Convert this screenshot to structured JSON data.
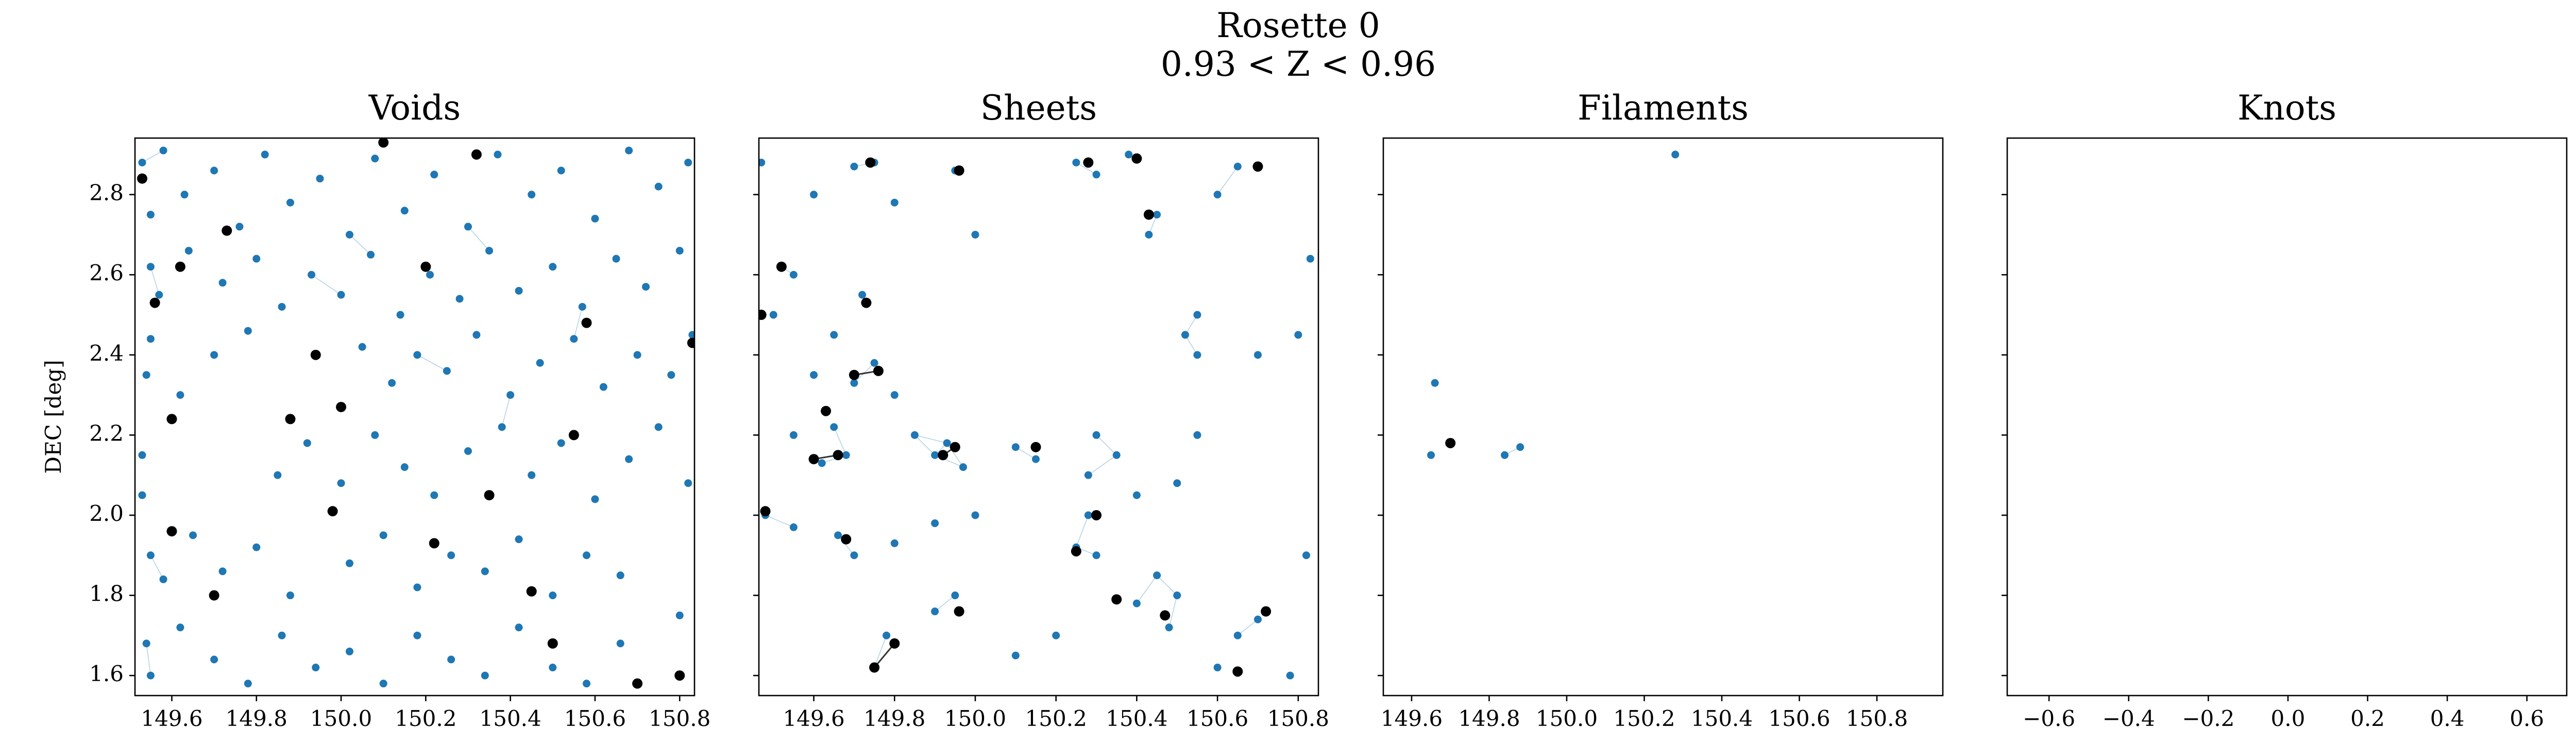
{
  "title": "Rosette 0",
  "subtitle": "0.93 < Z < 0.96",
  "chart_data": [
    {
      "type": "scatter",
      "title": "Voids",
      "ylabel": "DEC [deg]",
      "xlim": [
        149.513,
        150.835
      ],
      "ylim": [
        1.55,
        2.941
      ],
      "xticks": [
        149.6,
        149.8,
        {
          "value": 150,
          "label": "150.0"
        },
        150.2,
        150.4,
        150.6,
        150.8
      ],
      "yticks": [
        1.6,
        1.8,
        {
          "value": 2,
          "label": "2.0"
        },
        2.2,
        2.4,
        2.6,
        2.8
      ],
      "series": [
        {
          "color": "#1f77b4",
          "x": [
            149.53,
            149.55,
            149.58,
            149.63,
            149.7,
            149.76,
            149.82,
            149.88,
            149.95,
            150.02,
            150.08,
            150.15,
            150.22,
            150.3,
            150.37,
            150.45,
            150.52,
            150.6,
            150.68,
            150.75,
            150.82,
            149.55,
            149.57,
            149.64,
            149.72,
            149.8,
            149.86,
            149.93,
            150.0,
            150.07,
            150.14,
            150.21,
            150.28,
            150.35,
            150.42,
            150.5,
            150.57,
            150.65,
            150.72,
            150.8,
            149.54,
            149.55,
            149.62,
            149.7,
            149.78,
            150.05,
            150.12,
            150.18,
            150.25,
            150.32,
            150.4,
            150.47,
            150.55,
            150.62,
            150.7,
            150.78,
            150.83,
            149.53,
            149.53,
            149.85,
            149.92,
            150.0,
            150.08,
            150.15,
            150.22,
            150.3,
            150.38,
            150.45,
            150.52,
            150.6,
            150.68,
            150.75,
            150.82,
            149.55,
            149.58,
            149.65,
            149.72,
            149.8,
            149.88,
            150.02,
            150.1,
            150.18,
            150.26,
            150.34,
            150.42,
            150.5,
            150.58,
            150.66,
            150.8,
            149.54,
            149.55,
            149.62,
            149.7,
            149.78,
            149.86,
            149.94,
            150.02,
            150.1,
            150.18,
            150.26,
            150.34,
            150.42,
            150.5,
            150.58,
            150.66
          ],
          "y": [
            2.88,
            2.75,
            2.91,
            2.8,
            2.86,
            2.72,
            2.9,
            2.78,
            2.84,
            2.7,
            2.89,
            2.76,
            2.85,
            2.72,
            2.9,
            2.8,
            2.86,
            2.74,
            2.91,
            2.82,
            2.88,
            2.62,
            2.55,
            2.66,
            2.58,
            2.64,
            2.52,
            2.6,
            2.55,
            2.65,
            2.5,
            2.6,
            2.54,
            2.66,
            2.56,
            2.62,
            2.52,
            2.64,
            2.57,
            2.66,
            2.35,
            2.44,
            2.3,
            2.4,
            2.46,
            2.42,
            2.33,
            2.4,
            2.36,
            2.45,
            2.3,
            2.38,
            2.44,
            2.32,
            2.4,
            2.35,
            2.45,
            2.15,
            2.05,
            2.1,
            2.18,
            2.08,
            2.2,
            2.12,
            2.05,
            2.16,
            2.22,
            2.1,
            2.18,
            2.04,
            2.14,
            2.22,
            2.08,
            1.9,
            1.84,
            1.95,
            1.86,
            1.92,
            1.8,
            1.88,
            1.95,
            1.82,
            1.9,
            1.86,
            1.94,
            1.8,
            1.9,
            1.85,
            1.75,
            1.68,
            1.6,
            1.72,
            1.64,
            1.58,
            1.7,
            1.62,
            1.66,
            1.58,
            1.7,
            1.64,
            1.6,
            1.72,
            1.62,
            1.58,
            1.68
          ]
        },
        {
          "color": "#000000",
          "x": [
            149.53,
            149.62,
            149.73,
            149.94,
            150.2,
            150.32,
            150.58,
            150.83,
            149.6,
            149.88,
            150.35,
            150.55,
            149.6,
            149.7,
            149.98,
            150.22,
            150.45,
            150.7,
            150.8,
            149.56,
            150.0,
            150.1,
            150.5
          ],
          "y": [
            2.84,
            2.62,
            2.71,
            2.4,
            2.62,
            2.9,
            2.48,
            2.43,
            2.24,
            2.24,
            2.05,
            2.2,
            1.96,
            1.8,
            2.01,
            1.93,
            1.81,
            1.58,
            1.6,
            2.53,
            2.27,
            2.93,
            1.68
          ]
        }
      ]
    },
    {
      "type": "scatter",
      "title": "Sheets",
      "xlim": [
        149.464,
        150.85
      ],
      "ylim": [
        1.55,
        2.941
      ],
      "xticks": [
        149.6,
        149.8,
        {
          "value": 150,
          "label": "150.0"
        },
        150.2,
        150.4,
        150.6,
        150.8
      ],
      "series": [
        {
          "color": "#1f77b4",
          "x": [
            149.47,
            149.52,
            149.55,
            149.5,
            149.6,
            149.7,
            149.75,
            149.8,
            149.95,
            150.0,
            150.25,
            150.3,
            150.38,
            150.45,
            150.43,
            150.65,
            150.6,
            149.72,
            149.65,
            149.6,
            149.7,
            149.75,
            149.65,
            149.62,
            149.68,
            149.55,
            149.8,
            149.85,
            149.9,
            149.93,
            149.97,
            150.1,
            150.15,
            150.3,
            150.35,
            150.28,
            150.4,
            150.5,
            150.55,
            150.55,
            150.52,
            150.55,
            150.7,
            150.8,
            150.83,
            149.48,
            149.55,
            149.66,
            149.7,
            149.8,
            149.9,
            150.0,
            150.25,
            150.3,
            150.28,
            150.4,
            150.45,
            150.5,
            150.48,
            149.95,
            149.9,
            149.78,
            149.75,
            150.6,
            150.65,
            150.7,
            150.78,
            150.82,
            150.1,
            150.2
          ],
          "y": [
            2.88,
            2.62,
            2.6,
            2.5,
            2.8,
            2.87,
            2.88,
            2.78,
            2.86,
            2.7,
            2.88,
            2.85,
            2.9,
            2.75,
            2.7,
            2.87,
            2.8,
            2.55,
            2.45,
            2.35,
            2.33,
            2.38,
            2.22,
            2.13,
            2.15,
            2.2,
            2.3,
            2.2,
            2.15,
            2.18,
            2.12,
            2.17,
            2.14,
            2.2,
            2.15,
            2.1,
            2.05,
            2.08,
            2.2,
            2.4,
            2.45,
            2.5,
            2.4,
            2.45,
            2.64,
            2.0,
            1.97,
            1.95,
            1.9,
            1.93,
            1.98,
            2.0,
            1.92,
            1.9,
            2.0,
            1.78,
            1.85,
            1.8,
            1.72,
            1.8,
            1.76,
            1.7,
            1.62,
            1.62,
            1.7,
            1.74,
            1.6,
            1.9,
            1.65,
            1.7
          ]
        },
        {
          "color": "#000000",
          "x": [
            149.47,
            149.52,
            149.74,
            149.96,
            150.28,
            150.4,
            150.7,
            150.43,
            149.73,
            149.7,
            149.76,
            149.63,
            149.6,
            149.66,
            149.95,
            149.92,
            150.15,
            149.48,
            149.68,
            150.25,
            150.3,
            150.35,
            150.47,
            149.8,
            149.75,
            149.96,
            150.65,
            150.72
          ],
          "y": [
            2.5,
            2.62,
            2.88,
            2.86,
            2.88,
            2.89,
            2.87,
            2.75,
            2.53,
            2.35,
            2.36,
            2.26,
            2.14,
            2.15,
            2.17,
            2.15,
            2.17,
            2.01,
            1.94,
            1.91,
            2.0,
            1.79,
            1.75,
            1.68,
            1.62,
            1.76,
            1.61,
            1.76
          ]
        }
      ]
    },
    {
      "type": "scatter",
      "title": "Filaments",
      "xlim": [
        149.527,
        150.97
      ],
      "ylim": [
        1.55,
        2.941
      ],
      "xticks": [
        149.6,
        149.8,
        {
          "value": 150,
          "label": "150.0"
        },
        150.2,
        150.4,
        150.6,
        150.8
      ],
      "series": [
        {
          "color": "#1f77b4",
          "x": [
            150.28,
            149.66,
            149.65,
            149.84,
            149.88
          ],
          "y": [
            2.9,
            2.33,
            2.15,
            2.15,
            2.17
          ]
        },
        {
          "color": "#000000",
          "x": [
            149.7
          ],
          "y": [
            2.18
          ]
        }
      ]
    },
    {
      "type": "scatter",
      "title": "Knots",
      "xlim": [
        -0.705,
        0.7
      ],
      "ylim": [
        1.55,
        2.941
      ],
      "xticks": [
        {
          "value": -0.6,
          "label": "−0.6"
        },
        {
          "value": -0.4,
          "label": "−0.4"
        },
        {
          "value": -0.2,
          "label": "−0.2"
        },
        {
          "value": 0,
          "label": "0.0"
        },
        0.2,
        0.4,
        0.6
      ],
      "series": []
    }
  ]
}
